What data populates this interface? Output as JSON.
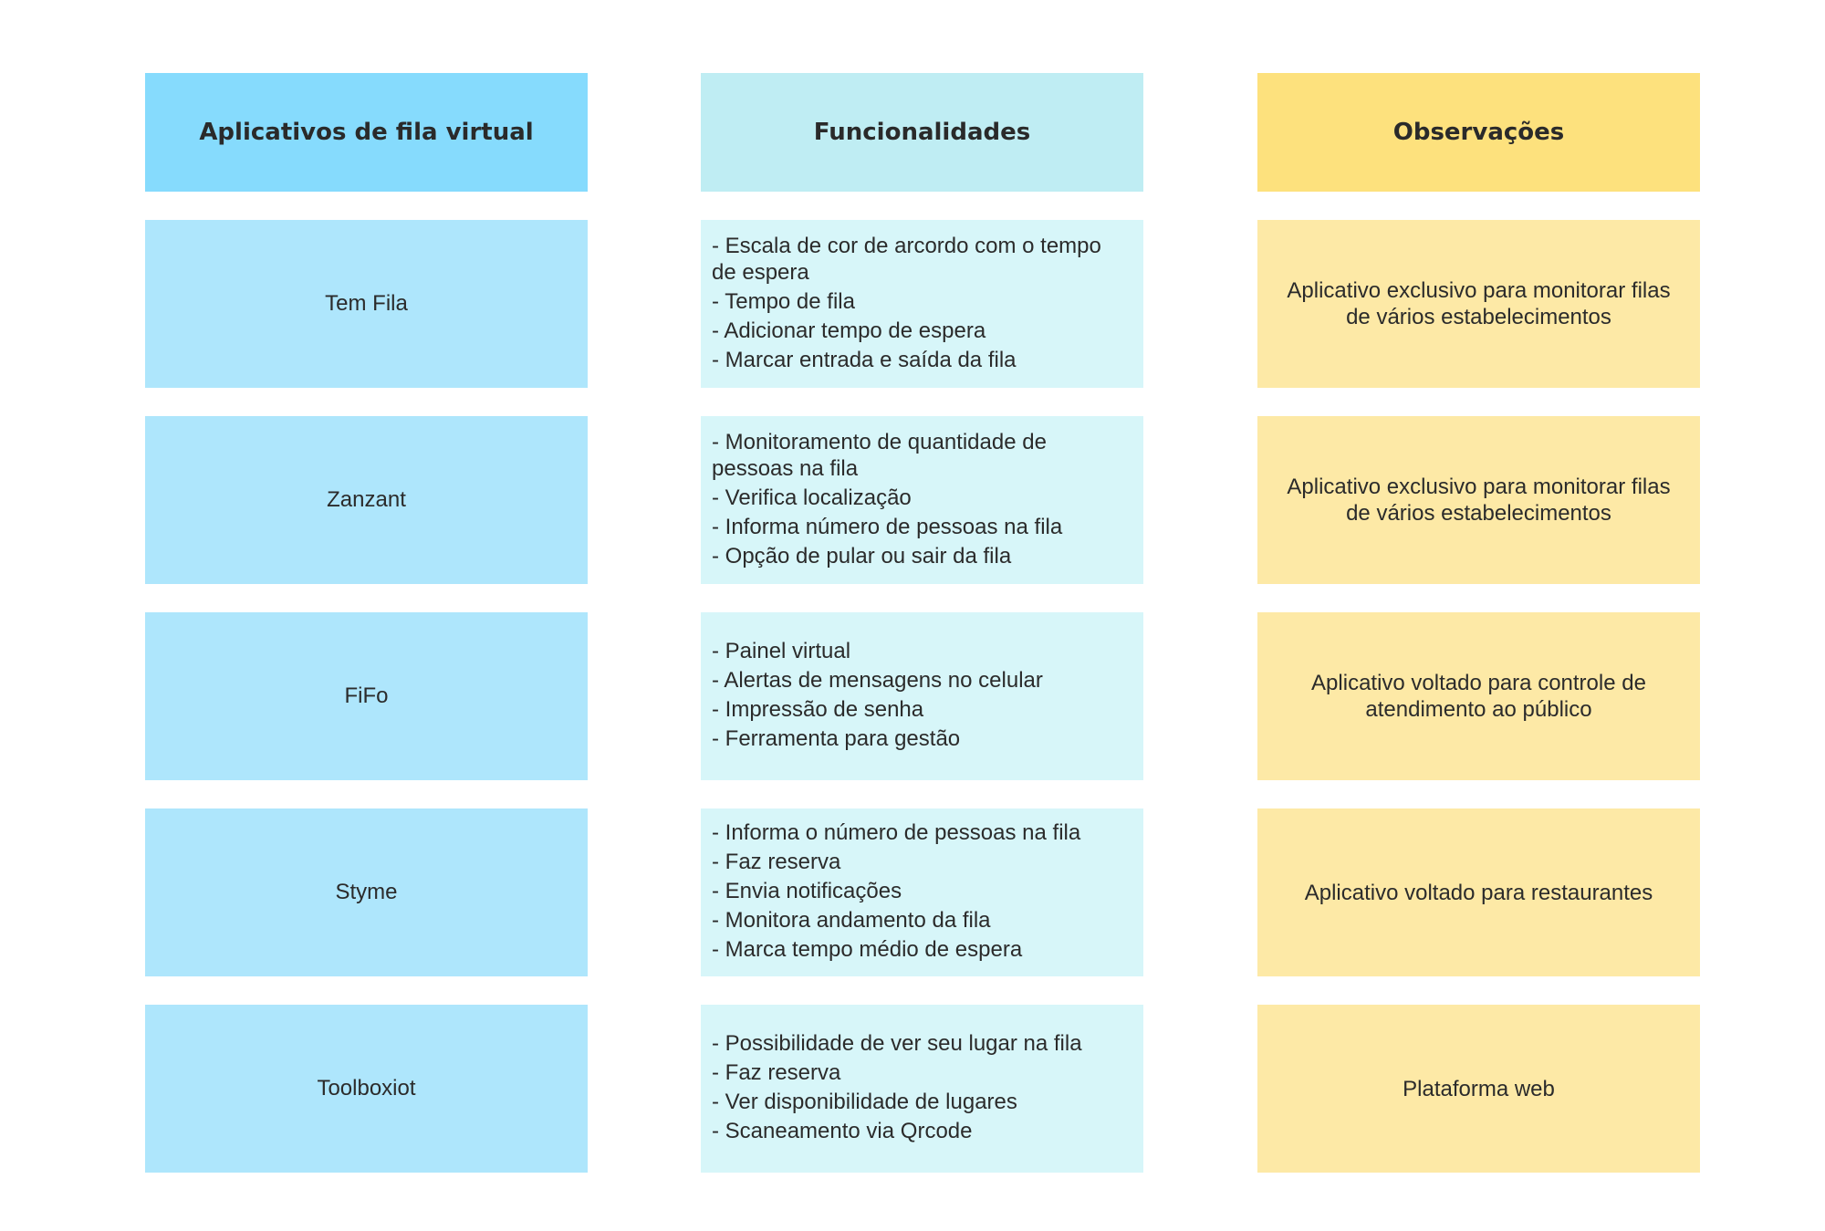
{
  "headers": {
    "apps": "Aplicativos de fila virtual",
    "functions": "Funcionalidades",
    "notes": "Observações"
  },
  "colors": {
    "apps_header": "#86dbfd",
    "apps_cell": "#aee6fc",
    "functions_header": "#bfedf3",
    "functions_cell": "#d7f6f9",
    "notes_header": "#fde17d",
    "notes_cell": "#fde9a6"
  },
  "rows": [
    {
      "app": "Tem Fila",
      "functions": [
        "- Escala de cor de arcordo com o tempo de espera",
        "- Tempo de fila",
        "- Adicionar tempo de espera",
        "- Marcar entrada e saída da fila"
      ],
      "note": "Aplicativo exclusivo para monitorar filas de vários estabelecimentos"
    },
    {
      "app": "Zanzant",
      "functions": [
        "- Monitoramento de quantidade de pessoas na fila",
        "- Verifica localização",
        "- Informa número de pessoas na fila",
        "- Opção de pular ou sair da fila"
      ],
      "note": "Aplicativo exclusivo para monitorar filas de vários estabelecimentos"
    },
    {
      "app": "FiFo",
      "functions": [
        "- Painel virtual",
        "- Alertas de mensagens no celular",
        "- Impressão de senha",
        "- Ferramenta para gestão"
      ],
      "note": "Aplicativo voltado para controle de atendimento ao público"
    },
    {
      "app": "Styme",
      "functions": [
        "- Informa o número de pessoas na fila",
        "- Faz reserva",
        "- Envia notificações",
        "- Monitora andamento da fila",
        "- Marca tempo médio de espera"
      ],
      "note": "Aplicativo voltado para restaurantes"
    },
    {
      "app": "Toolboxiot",
      "functions": [
        "- Possibilidade de ver seu lugar na fila",
        "- Faz reserva",
        "- Ver disponibilidade de lugares",
        "- Scaneamento via Qrcode"
      ],
      "note": "Plataforma web"
    }
  ]
}
